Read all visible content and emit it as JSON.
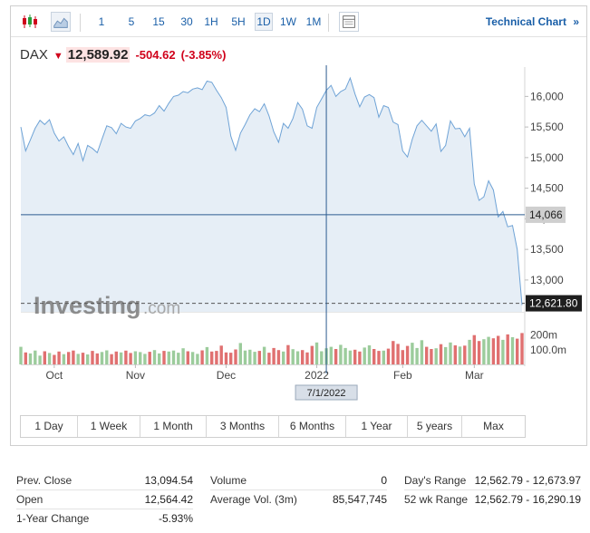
{
  "toolbar": {
    "periods": [
      "1",
      "5",
      "15",
      "30",
      "1H",
      "5H",
      "1D",
      "1W",
      "1M"
    ],
    "active_period": "1D",
    "technical_chart_label": "Technical Chart",
    "technical_chart_arrow": "»"
  },
  "quote": {
    "symbol": "DAX",
    "last": "12,589.92",
    "change": "-504.62",
    "change_pct": "(-3.85%)",
    "down_color": "#d0021b"
  },
  "watermark": {
    "brand": "Investing",
    "suffix": ".com"
  },
  "crosshair": {
    "date_label": "7/1/2022",
    "price_label": "14,066",
    "price": 14066,
    "x_index": 64
  },
  "last_price_label": "12,621.80",
  "range_buttons": [
    "1 Day",
    "1 Week",
    "1 Month",
    "3 Months",
    "6 Months",
    "1 Year",
    "5 years",
    "Max"
  ],
  "chart_data": {
    "type": "area",
    "x_labels": [
      "Oct",
      "Nov",
      "Dec",
      "2022",
      "Feb",
      "Mar"
    ],
    "x_label_index": [
      7,
      24,
      43,
      62,
      80,
      95
    ],
    "y_ticks": [
      13000,
      13500,
      14000,
      14500,
      15000,
      15500,
      16000
    ],
    "ylim": [
      12480,
      16420
    ],
    "volume_ticks": [
      {
        "label": "200m",
        "value": 200
      },
      {
        "label": "100.0m",
        "value": 100
      }
    ],
    "volume_max": 260,
    "series": [
      {
        "values": [
          15500,
          15110,
          15290,
          15480,
          15610,
          15540,
          15620,
          15400,
          15270,
          15340,
          15180,
          15050,
          15230,
          14950,
          15200,
          15150,
          15080,
          15300,
          15520,
          15490,
          15390,
          15560,
          15500,
          15480,
          15600,
          15640,
          15700,
          15680,
          15730,
          15850,
          15760,
          15890,
          16000,
          16020,
          16080,
          16060,
          16120,
          16140,
          16110,
          16250,
          16230,
          16100,
          15980,
          15820,
          15350,
          15120,
          15400,
          15540,
          15700,
          15800,
          15750,
          15880,
          15680,
          15420,
          15250,
          15560,
          15480,
          15640,
          15900,
          15790,
          15520,
          15480,
          15820,
          15960,
          16100,
          16180,
          16000,
          16080,
          16120,
          16300,
          16040,
          15830,
          15990,
          16030,
          15980,
          15660,
          15850,
          15820,
          15580,
          15540,
          15110,
          15010,
          15300,
          15520,
          15610,
          15520,
          15430,
          15550,
          15100,
          15200,
          15600,
          15470,
          15480,
          15340,
          15480,
          14570,
          14300,
          14360,
          14620,
          14470,
          14030,
          14120,
          13870,
          13890,
          13500,
          12590
        ]
      }
    ],
    "volume": [
      120,
      82,
      75,
      95,
      60,
      90,
      78,
      65,
      88,
      70,
      85,
      95,
      72,
      80,
      68,
      92,
      75,
      85,
      96,
      70,
      88,
      82,
      94,
      78,
      90,
      84,
      72,
      86,
      98,
      75,
      92,
      88,
      95,
      80,
      110,
      90,
      85,
      72,
      96,
      118,
      88,
      92,
      128,
      82,
      80,
      102,
      146,
      95,
      100,
      86,
      92,
      120,
      80,
      112,
      98,
      88,
      132,
      104,
      90,
      98,
      82,
      126,
      150,
      90,
      110,
      120,
      105,
      134,
      112,
      95,
      100,
      88,
      115,
      130,
      105,
      92,
      94,
      108,
      160,
      140,
      98,
      126,
      148,
      112,
      165,
      120,
      105,
      110,
      138,
      118,
      150,
      130,
      122,
      128,
      168,
      200,
      160,
      172,
      188,
      178,
      195,
      168,
      205,
      186,
      176,
      214
    ]
  },
  "stats": [
    {
      "label": "Prev. Close",
      "value": "13,094.54"
    },
    {
      "label": "Open",
      "value": "12,564.42"
    },
    {
      "label": "1-Year Change",
      "value": "-5.93%"
    },
    {
      "label": "Volume",
      "value": "0"
    },
    {
      "label": "Average Vol. (3m)",
      "value": "85,547,745"
    },
    {
      "label": "Day's Range",
      "value": "12,562.79 - 12,673.97"
    },
    {
      "label": "52 wk Range",
      "value": "12,562.79 - 16,290.19"
    }
  ]
}
